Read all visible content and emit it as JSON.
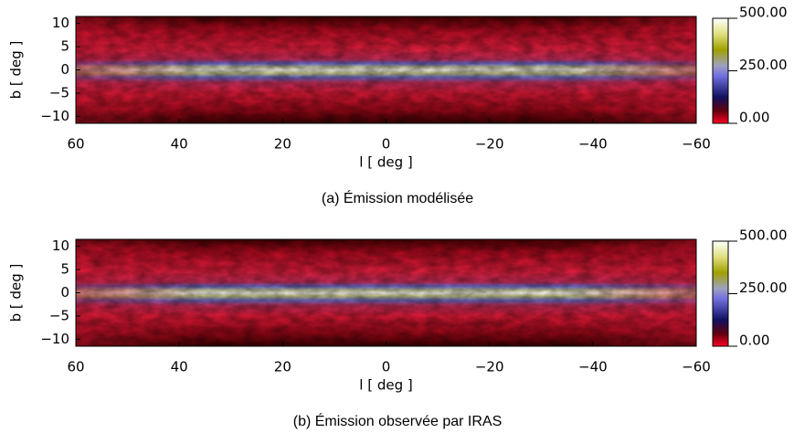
{
  "chart_data": [
    {
      "type": "heatmap",
      "caption": "(a)  Émission modélisée",
      "xlabel": "l [ deg ]",
      "ylabel": "b [ deg ]",
      "xlim": [
        60,
        -60
      ],
      "xticks": [
        60,
        40,
        20,
        0,
        {
          "value": -20,
          "label": "−20"
        },
        {
          "value": -40,
          "label": "−40"
        },
        {
          "value": -60,
          "label": "−60"
        }
      ],
      "ylim": [
        -11.5,
        11.5
      ],
      "yticks": [
        {
          "value": -10,
          "label": "−10"
        },
        {
          "value": -5,
          "label": "−5"
        },
        0,
        5,
        10
      ],
      "clim": [
        0,
        500
      ],
      "cticks": [
        {
          "value": 0,
          "label": "0.00"
        },
        {
          "value": 250,
          "label": "250.00"
        },
        {
          "value": 500,
          "label": "500.00"
        }
      ]
    },
    {
      "type": "heatmap",
      "caption": "(b)  Émission observée par IRAS",
      "xlabel": "l [ deg ]",
      "ylabel": "b [ deg ]",
      "xlim": [
        60,
        -60
      ],
      "xticks": [
        60,
        40,
        20,
        0,
        {
          "value": -20,
          "label": "−20"
        },
        {
          "value": -40,
          "label": "−40"
        },
        {
          "value": -60,
          "label": "−60"
        }
      ],
      "ylim": [
        -11.5,
        11.5
      ],
      "yticks": [
        {
          "value": -10,
          "label": "−10"
        },
        {
          "value": -5,
          "label": "−5"
        },
        0,
        5,
        10
      ],
      "clim": [
        0,
        500
      ],
      "cticks": [
        {
          "value": 0,
          "label": "0.00"
        },
        {
          "value": 250,
          "label": "250.00"
        },
        {
          "value": 500,
          "label": "500.00"
        }
      ]
    }
  ]
}
